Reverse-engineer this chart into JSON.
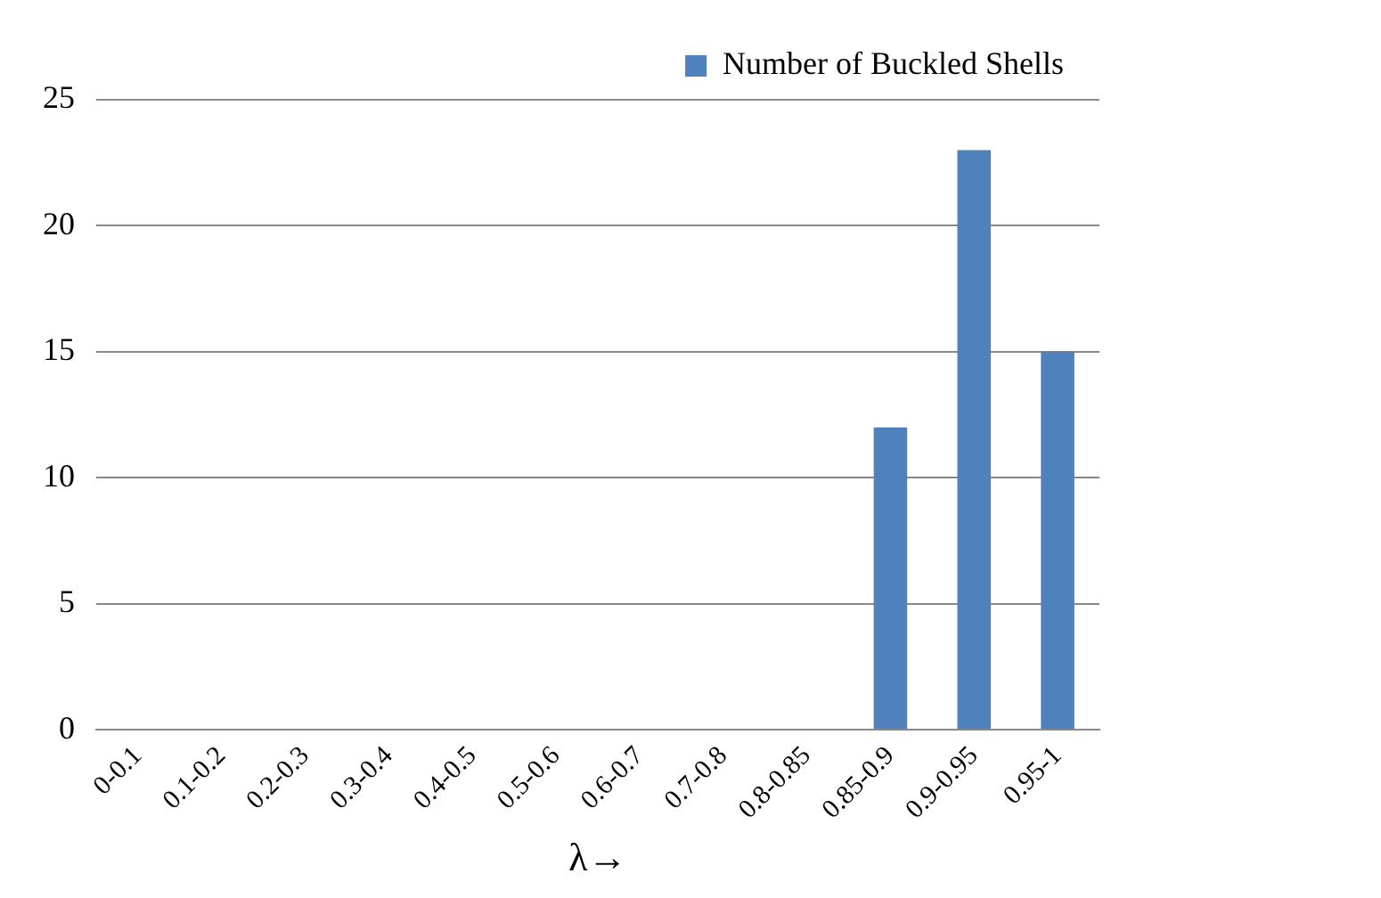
{
  "chart_data": {
    "type": "bar",
    "categories": [
      "0-0.1",
      "0.1-0.2",
      "0.2-0.3",
      "0.3-0.4",
      "0.4-0.5",
      "0.5-0.6",
      "0.6-0.7",
      "0.7-0.8",
      "0.8-0.85",
      "0.85-0.9",
      "0.9-0.95",
      "0.95-1"
    ],
    "series": [
      {
        "name": "Number of Buckled Shells",
        "color": "#4f81bd",
        "values": [
          0,
          0,
          0,
          0,
          0,
          0,
          0,
          0,
          0,
          12,
          23,
          15
        ]
      }
    ],
    "xlabel": "λ→",
    "ylim": [
      0,
      25
    ],
    "yticks": [
      0,
      5,
      10,
      15,
      20,
      25
    ],
    "grid": "y",
    "legend": "top right"
  }
}
